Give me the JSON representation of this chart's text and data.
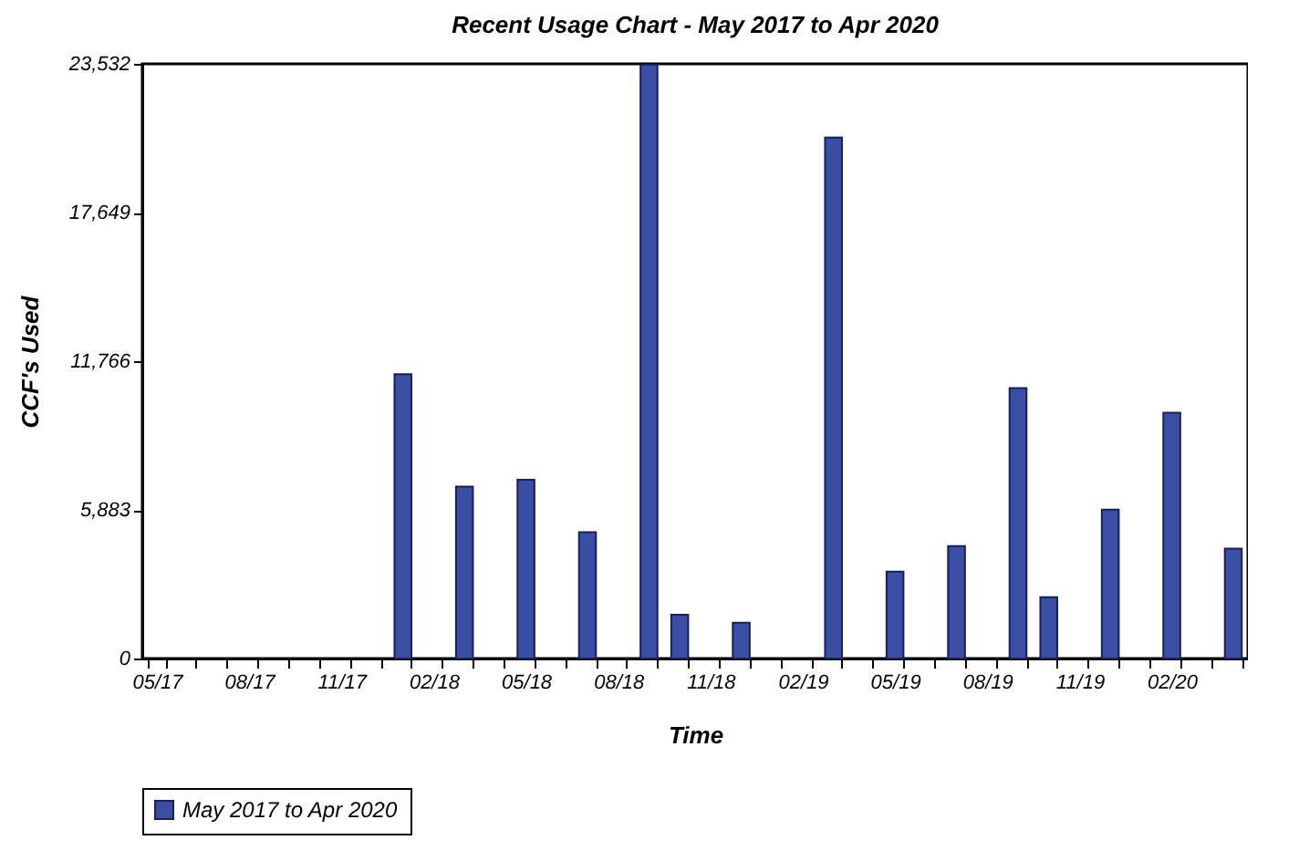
{
  "chart_data": {
    "type": "bar",
    "title": "Recent Usage Chart - May 2017 to Apr 2020",
    "xlabel": "Time",
    "ylabel": "CCF's Used",
    "categories": [
      "05/17",
      null,
      null,
      "08/17",
      null,
      null,
      "11/17",
      null,
      null,
      "02/18",
      null,
      null,
      "05/18",
      null,
      null,
      "08/18",
      null,
      null,
      "11/18",
      null,
      null,
      "02/19",
      null,
      null,
      "05/19",
      null,
      null,
      "08/19",
      null,
      null,
      "11/19",
      null,
      null,
      "02/20",
      null,
      null
    ],
    "series": [
      {
        "name": "May 2017 to Apr 2020",
        "color": "#3a4ea3",
        "values": [
          null,
          null,
          null,
          null,
          null,
          null,
          null,
          null,
          11250,
          null,
          6800,
          null,
          7070,
          null,
          5000,
          null,
          23500,
          1730,
          null,
          1420,
          null,
          null,
          20620,
          null,
          3440,
          null,
          4450,
          null,
          10700,
          2430,
          null,
          5890,
          null,
          9730,
          null,
          4350
        ]
      }
    ],
    "ylim": [
      0,
      23532
    ],
    "yticks": [
      0,
      {
        "value": 5883,
        "label": "5,883"
      },
      {
        "value": 11766,
        "label": "11,766"
      },
      {
        "value": 17649,
        "label": "17,649"
      },
      {
        "value": 23532,
        "label": "23,532"
      }
    ],
    "grid": false,
    "legend": "bottom"
  }
}
